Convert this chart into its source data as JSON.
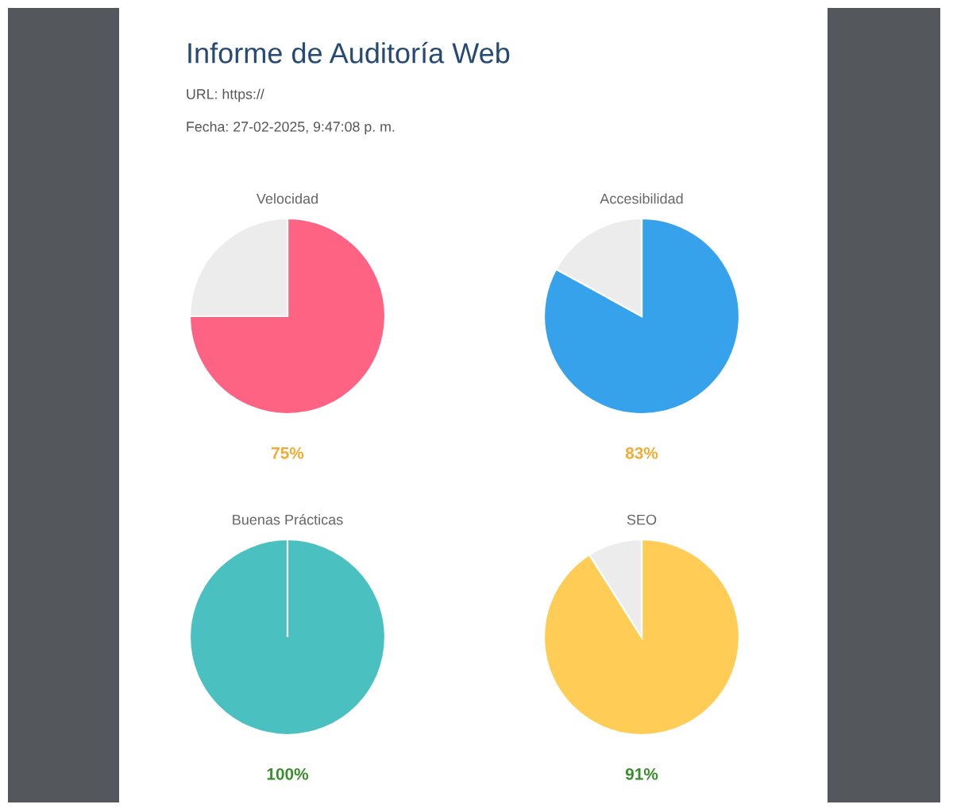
{
  "chart_data": [
    {
      "type": "other",
      "title": "Informe de Auditoría Web",
      "annotations": [
        "URL: https://",
        "Fecha: 27-02-2025, 9:47:08 p. m."
      ]
    },
    {
      "type": "pie",
      "title": "Velocidad",
      "categories": [
        null,
        null
      ],
      "values": [
        75,
        25
      ],
      "colors": [
        "#ff6384",
        "#ececec"
      ],
      "value_labels": [
        "75%",
        null
      ]
    },
    {
      "type": "pie",
      "title": "Accesibilidad",
      "categories": [
        null,
        null
      ],
      "values": [
        83,
        17
      ],
      "colors": [
        "#36a2eb",
        "#ececec"
      ],
      "value_labels": [
        "83%",
        null
      ]
    },
    {
      "type": "pie",
      "title": "Buenas Prácticas",
      "categories": [
        null,
        null
      ],
      "values": [
        100,
        0
      ],
      "colors": [
        "#4bc0c0",
        "#ececec"
      ],
      "value_labels": [
        "100%",
        null
      ]
    },
    {
      "type": "pie",
      "title": "SEO",
      "categories": [
        null,
        null
      ],
      "values": [
        91,
        9
      ],
      "colors": [
        "#ffcd56",
        "#ececec"
      ],
      "value_labels": [
        "91%",
        null
      ]
    }
  ]
}
